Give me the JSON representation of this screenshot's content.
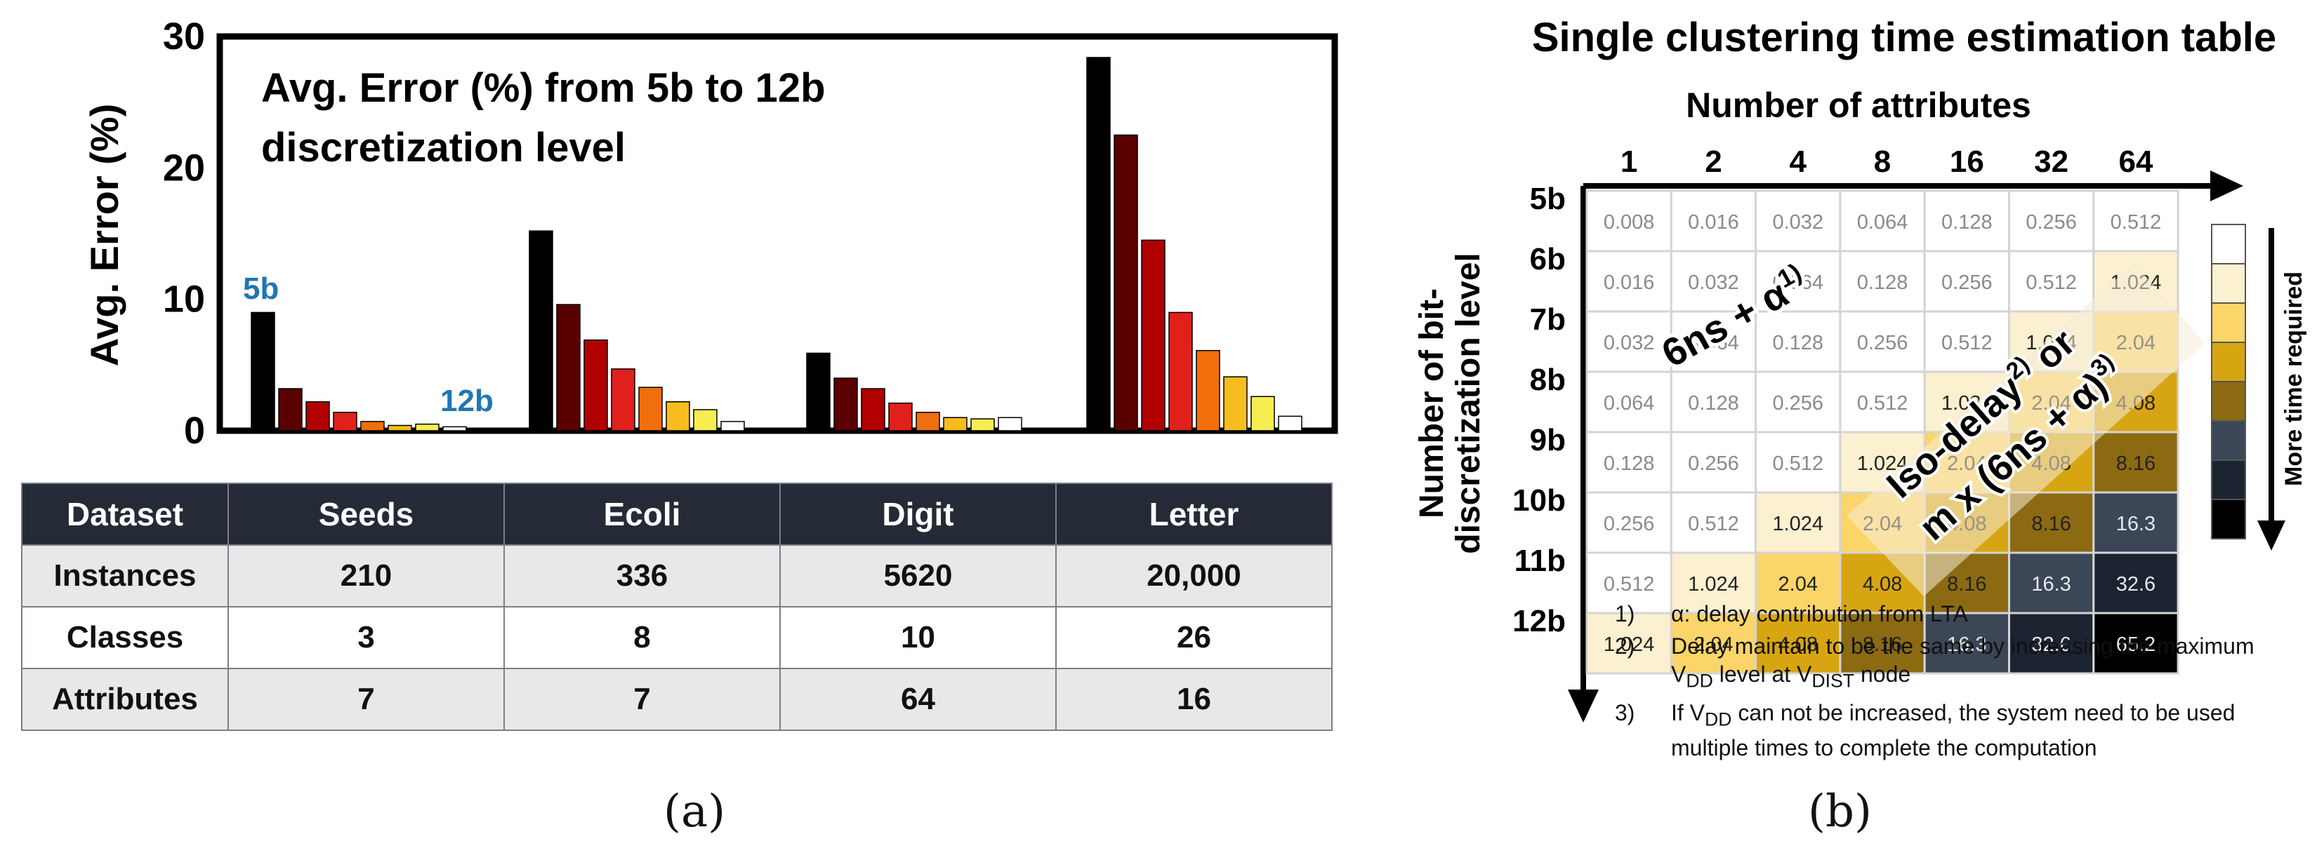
{
  "chart_data": [
    {
      "type": "bar",
      "title": "Avg. Error (%) from 5b to 12b discretization level",
      "title_lines": [
        "Avg. Error (%) from 5b to 12b",
        "discretization level"
      ],
      "xlabel": "",
      "ylabel": "Avg. Error (%)",
      "ylim": [
        0,
        30
      ],
      "yticks": [
        0,
        10,
        20,
        30
      ],
      "grid": false,
      "categories": [
        "Seeds",
        "Ecoli",
        "Digit",
        "Letter"
      ],
      "series": [
        {
          "name": "5b",
          "color": "#000000",
          "values": [
            9.0,
            15.2,
            5.9,
            28.4
          ]
        },
        {
          "name": "6b",
          "color": "#5a0000",
          "values": [
            3.2,
            9.6,
            4.0,
            22.5
          ]
        },
        {
          "name": "7b",
          "color": "#b20000",
          "values": [
            2.2,
            6.9,
            3.2,
            14.5
          ]
        },
        {
          "name": "8b",
          "color": "#e0201a",
          "values": [
            1.4,
            4.7,
            2.1,
            9.0
          ]
        },
        {
          "name": "9b",
          "color": "#f06f0c",
          "values": [
            0.7,
            3.3,
            1.4,
            6.1
          ]
        },
        {
          "name": "10b",
          "color": "#f7bd1f",
          "values": [
            0.4,
            2.2,
            1.0,
            4.1
          ]
        },
        {
          "name": "11b",
          "color": "#f6ee50",
          "values": [
            0.5,
            1.6,
            0.9,
            2.6
          ]
        },
        {
          "name": "12b",
          "color": "#ffffff",
          "values": [
            0.3,
            0.7,
            1.0,
            1.1
          ]
        }
      ],
      "annotations": {
        "first": "5b",
        "last": "12b"
      },
      "annotation_color": "#1f77b4"
    },
    {
      "type": "heatmap",
      "title": "Single clustering time estimation table",
      "xlabel": "Number of attributes",
      "ylabel": "Number of bit-discretization level",
      "ylabel_lines": [
        "Number of bit-",
        "discretization level"
      ],
      "x": [
        "1",
        "2",
        "4",
        "8",
        "16",
        "32",
        "64"
      ],
      "y": [
        "5b",
        "6b",
        "7b",
        "8b",
        "9b",
        "10b",
        "11b",
        "12b"
      ],
      "values": [
        [
          "0.008",
          "0.016",
          "0.032",
          "0.064",
          "0.128",
          "0.256",
          "0.512"
        ],
        [
          "0.016",
          "0.032",
          "0.064",
          "0.128",
          "0.256",
          "0.512",
          "1.024"
        ],
        [
          "0.032",
          "0.064",
          "0.128",
          "0.256",
          "0.512",
          "1.024",
          "2.04"
        ],
        [
          "0.064",
          "0.128",
          "0.256",
          "0.512",
          "1.024",
          "2.04",
          "4.08"
        ],
        [
          "0.128",
          "0.256",
          "0.512",
          "1.024",
          "2.04",
          "4.08",
          "8.16"
        ],
        [
          "0.256",
          "0.512",
          "1.024",
          "2.04",
          "4.08",
          "8.16",
          "16.3"
        ],
        [
          "0.512",
          "1.024",
          "2.04",
          "4.08",
          "8.16",
          "16.3",
          "32.6"
        ],
        [
          "1.024",
          "2.04",
          "4.08",
          "8.16",
          "16.3",
          "32.6",
          "65.2"
        ]
      ],
      "color_levels": [
        "0.008",
        "0.016",
        "0.032",
        "0.064",
        "0.128",
        "0.256",
        "0.512",
        "1.024",
        "2.04",
        "4.08",
        "8.16",
        "16.3",
        "32.6",
        "65.2"
      ],
      "level_colors": [
        "#ffffff",
        "#ffffff",
        "#ffffff",
        "#ffffff",
        "#ffffff",
        "#ffffff",
        "#ffffff",
        "#fbf0cf",
        "#fcd569",
        "#d8a512",
        "#8b6a12",
        "#3b4657",
        "#1c2432",
        "#000000"
      ],
      "legend": {
        "label": "More time required",
        "colors": [
          "#ffffff",
          "#fbf0cf",
          "#fcd569",
          "#d8a512",
          "#8b6a12",
          "#3b4657",
          "#1c2432",
          "#000000"
        ]
      },
      "overlays": {
        "region1": {
          "text": "6ns + α",
          "sup": "1)"
        },
        "region2_line1": {
          "text": "Iso-delay",
          "sup": "2)",
          "tail": " or"
        },
        "region2_line2": {
          "text": "m x (6ns + α)",
          "sup": "3)"
        }
      }
    }
  ],
  "table": {
    "headers": [
      "Dataset",
      "Seeds",
      "Ecoli",
      "Digit",
      "Letter"
    ],
    "rows": [
      [
        "Instances",
        "210",
        "336",
        "5620",
        "20,000"
      ],
      [
        "Classes",
        "3",
        "8",
        "10",
        "26"
      ],
      [
        "Attributes",
        "7",
        "7",
        "64",
        "16"
      ]
    ]
  },
  "notes": [
    {
      "num": "1)",
      "text": "α: delay contribution from LTA"
    },
    {
      "num": "2)",
      "text": "Delay maintain to be the same by increasing the maximum V",
      "sub1": "DD",
      "text2": " level at V",
      "sub2": "DIST",
      "text3": " node"
    },
    {
      "num": "3)",
      "text": "If V",
      "sub1": "DD",
      "text2": " can not be increased, the system need to be used multiple times to complete the computation"
    }
  ],
  "captions": {
    "a": "(a)",
    "b": "(b)"
  }
}
